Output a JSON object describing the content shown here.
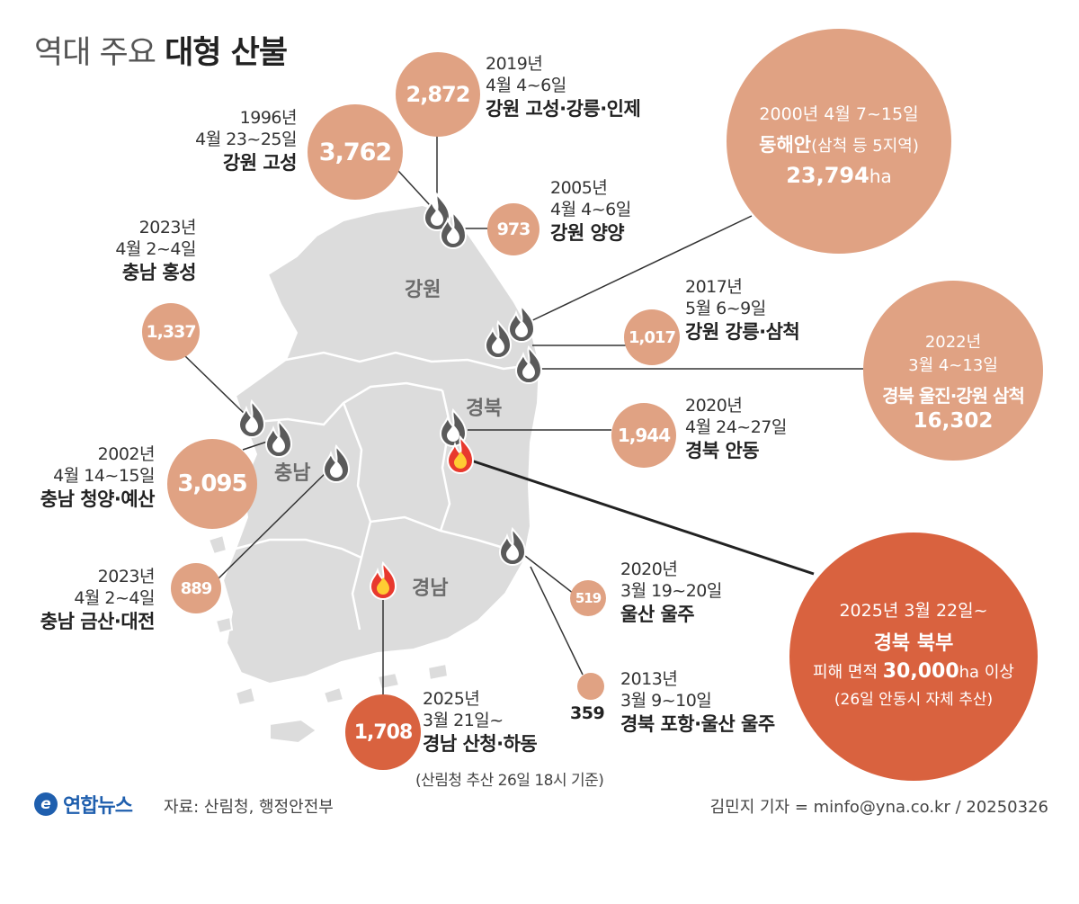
{
  "title": {
    "light": "역대 주요",
    "bold": "대형 산불"
  },
  "regions": {
    "gangwon": "강원",
    "gyeongbuk": "경북",
    "chungnam": "충남",
    "gyeongnam": "경남"
  },
  "fires": {
    "gw1996": {
      "value": "3,762",
      "year": "1996년",
      "dates": "4월 23~25일",
      "place": "강원 고성"
    },
    "gw2019": {
      "value": "2,872",
      "year": "2019년",
      "dates": "4월 4~6일",
      "place": "강원 고성·강릉·인제"
    },
    "gw2005": {
      "value": "973",
      "year": "2005년",
      "dates": "4월 4~6일",
      "place": "강원 양양"
    },
    "cn2023a": {
      "value": "1,337",
      "year": "2023년",
      "dates": "4월 2~4일",
      "place": "충남 홍성"
    },
    "cn2002": {
      "value": "3,095",
      "year": "2002년",
      "dates": "4월 14~15일",
      "place": "충남 청양·예산"
    },
    "cn2023b": {
      "value": "889",
      "year": "2023년",
      "dates": "4월 2~4일",
      "place": "충남 금산·대전"
    },
    "gw2017": {
      "value": "1,017",
      "year": "2017년",
      "dates": "5월 6~9일",
      "place": "강원 강릉·삼척"
    },
    "gb2020": {
      "value": "1,944",
      "year": "2020년",
      "dates": "4월 24~27일",
      "place": "경북 안동"
    },
    "us2020": {
      "value": "519",
      "year": "2020년",
      "dates": "3월 19~20일",
      "place": "울산 울주"
    },
    "ph2013": {
      "value": "359",
      "year": "2013년",
      "dates": "3월 9~10일",
      "place": "경북 포항·울산 울주"
    },
    "gn2025": {
      "value": "1,708",
      "year": "2025년",
      "dates": "3월 21일~",
      "place": "경남 산청·하동",
      "note": "(산림청 추산 26일 18시 기준)"
    },
    "eh2000": {
      "line1": "2000년 4월 7~15일",
      "place": "동해안",
      "sub": "(삼척 등 5지역)",
      "value": "23,794",
      "unit": "ha"
    },
    "uj2022": {
      "year": "2022년",
      "dates": "3월 4~13일",
      "place": "경북 울진·강원 삼척",
      "value": "16,302"
    },
    "gb2025": {
      "line1": "2025년 3월 22일~",
      "place": "경북 북부",
      "area_prefix": "피해 면적 ",
      "value": "30,000",
      "unit": "ha",
      "area_suffix": " 이상",
      "note": "(26일 안동시 자체 추산)"
    }
  },
  "footer": {
    "logo": "연합뉴스",
    "source": "자료: 산림청, 행정안전부",
    "credit": "김민지 기자 = minfo@yna.co.kr / 20250326"
  },
  "colors": {
    "map": "#dcdcdc",
    "bubble": "#e0a283",
    "bubble_dark": "#d9623f",
    "line": "#333333",
    "fire_icon": "fire-gray",
    "active_fire_icon": "fire-red"
  }
}
